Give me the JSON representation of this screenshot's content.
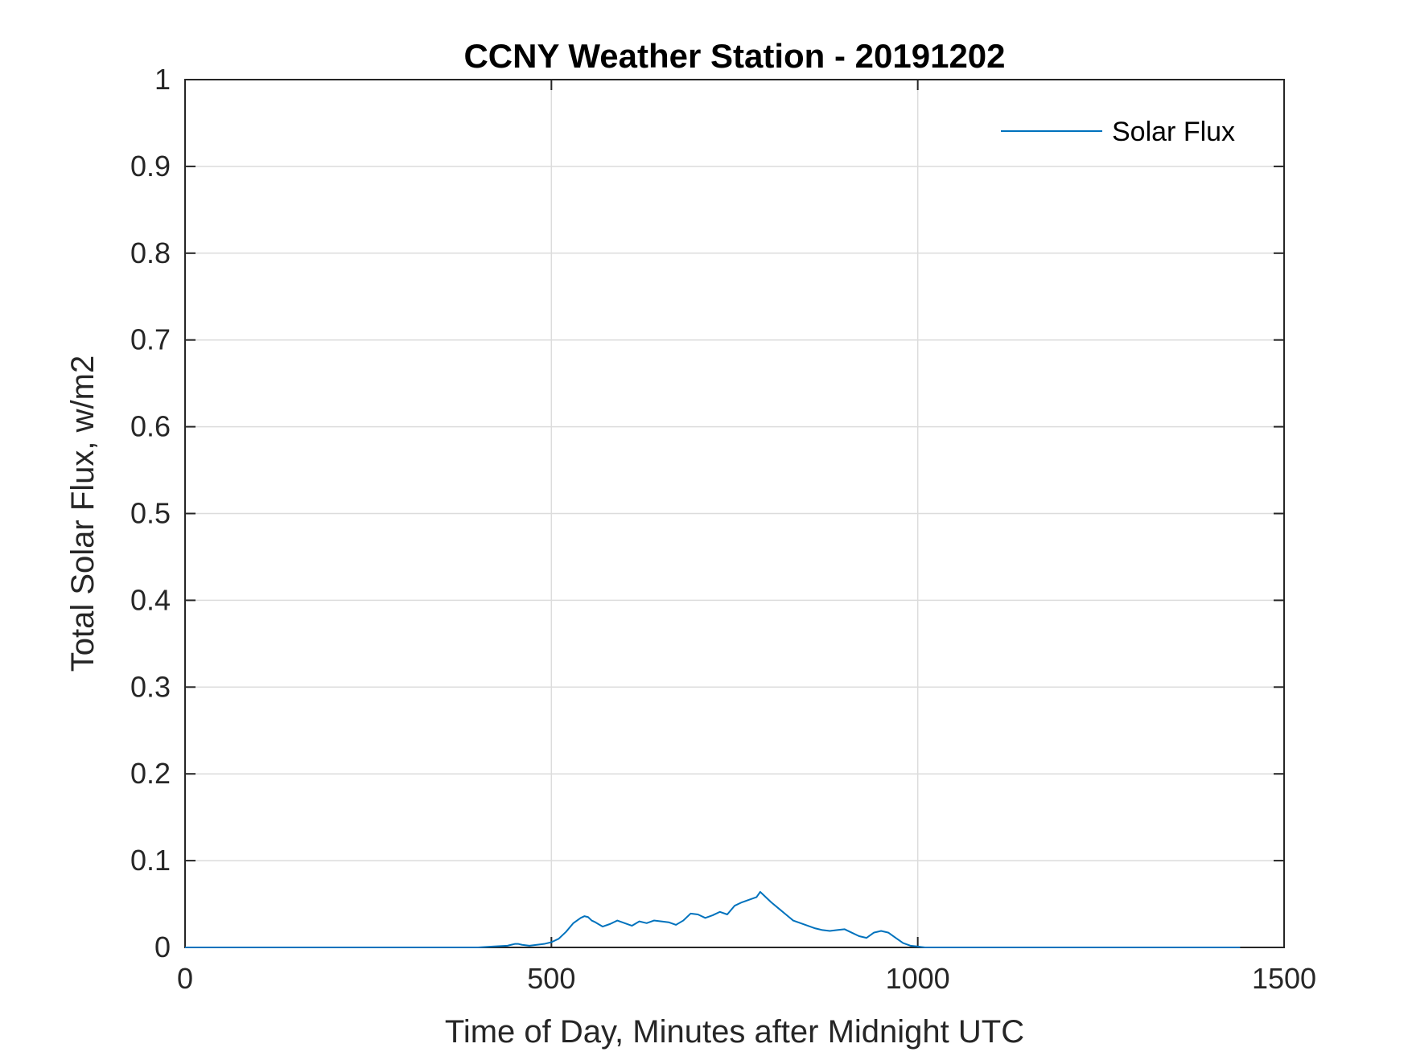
{
  "chart_data": {
    "type": "line",
    "title": "CCNY Weather Station - 20191202",
    "xlabel": "Time of Day, Minutes after Midnight UTC",
    "ylabel": "Total Solar Flux, w/m2",
    "xlim": [
      0,
      1500
    ],
    "ylim": [
      0,
      1
    ],
    "xticks": [
      0,
      500,
      1000,
      1500
    ],
    "xtick_labels": [
      "0",
      "500",
      "1000",
      "1500"
    ],
    "yticks": [
      0,
      0.1,
      0.2,
      0.3,
      0.4,
      0.5,
      0.6,
      0.7,
      0.8,
      0.9,
      1
    ],
    "ytick_labels": [
      "0",
      "0.1",
      "0.2",
      "0.3",
      "0.4",
      "0.5",
      "0.6",
      "0.7",
      "0.8",
      "0.9",
      "1"
    ],
    "grid": true,
    "legend_position": "top-right",
    "series": [
      {
        "name": "Solar Flux",
        "color": "#0072BD",
        "x": [
          0,
          100,
          200,
          300,
          400,
          420,
          440,
          450,
          455,
          460,
          470,
          480,
          490,
          500,
          510,
          520,
          530,
          540,
          545,
          550,
          555,
          560,
          570,
          580,
          590,
          600,
          610,
          620,
          630,
          640,
          650,
          660,
          670,
          680,
          690,
          700,
          710,
          720,
          730,
          740,
          750,
          760,
          770,
          780,
          785,
          790,
          800,
          810,
          820,
          830,
          840,
          850,
          860,
          870,
          880,
          890,
          900,
          910,
          920,
          930,
          940,
          950,
          960,
          970,
          980,
          990,
          1000,
          1010,
          1100,
          1200,
          1300,
          1440
        ],
        "y": [
          0,
          0,
          0,
          0,
          0,
          0.001,
          0.002,
          0.004,
          0.004,
          0.003,
          0.002,
          0.003,
          0.004,
          0.006,
          0.01,
          0.018,
          0.028,
          0.034,
          0.036,
          0.035,
          0.031,
          0.029,
          0.024,
          0.027,
          0.031,
          0.028,
          0.025,
          0.03,
          0.028,
          0.031,
          0.03,
          0.029,
          0.026,
          0.031,
          0.039,
          0.038,
          0.034,
          0.037,
          0.041,
          0.038,
          0.048,
          0.052,
          0.055,
          0.058,
          0.064,
          0.06,
          0.052,
          0.045,
          0.038,
          0.031,
          0.028,
          0.025,
          0.022,
          0.02,
          0.019,
          0.02,
          0.021,
          0.017,
          0.013,
          0.011,
          0.017,
          0.019,
          0.017,
          0.011,
          0.005,
          0.002,
          0.001,
          0,
          0,
          0,
          0,
          0
        ]
      }
    ]
  }
}
